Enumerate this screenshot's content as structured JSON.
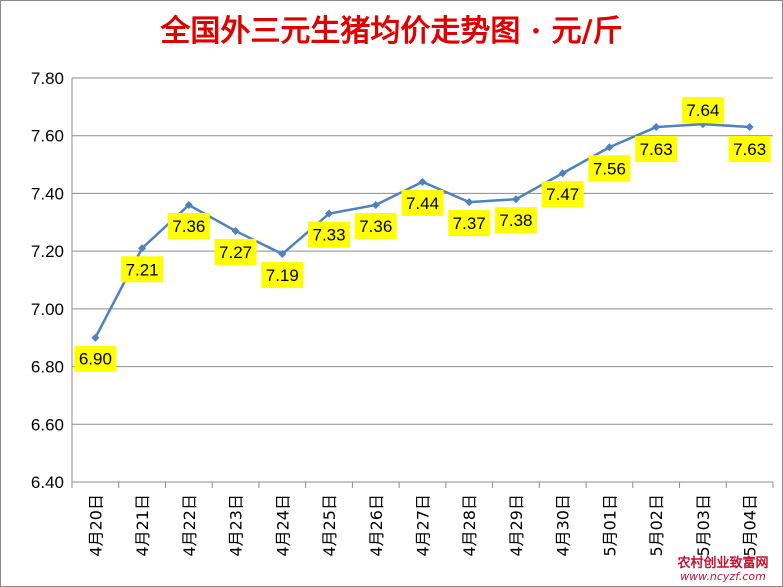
{
  "chart_data": {
    "type": "line",
    "title": "全国外三元生猪均价走势图 · 元/斤",
    "categories": [
      "4月20日",
      "4月21日",
      "4月22日",
      "4月23日",
      "4月24日",
      "4月25日",
      "4月26日",
      "4月27日",
      "4月28日",
      "4月29日",
      "4月30日",
      "5月01日",
      "5月02日",
      "5月03日",
      "5月04日"
    ],
    "series": [
      {
        "values": [
          6.9,
          7.21,
          7.36,
          7.27,
          7.19,
          7.33,
          7.36,
          7.44,
          7.37,
          7.38,
          7.47,
          7.56,
          7.63,
          7.64,
          7.63
        ]
      }
    ],
    "data_labels": [
      "6.90",
      "7.21",
      "7.36",
      "7.27",
      "7.19",
      "7.33",
      "7.36",
      "7.44",
      "7.37",
      "7.38",
      "7.47",
      "7.56",
      "7.63",
      "7.64",
      "7.63"
    ],
    "ylim": [
      6.4,
      7.8
    ],
    "yticks": [
      "6.40",
      "6.60",
      "6.80",
      "7.00",
      "7.20",
      "7.40",
      "7.60",
      "7.80"
    ],
    "grid": true,
    "line_color": "#4f81bd",
    "label_bg": "#ffff00",
    "title_color": "#e00000"
  },
  "watermark": {
    "line1": "农村创业致富网",
    "line2": "www.ncyzf.com"
  }
}
